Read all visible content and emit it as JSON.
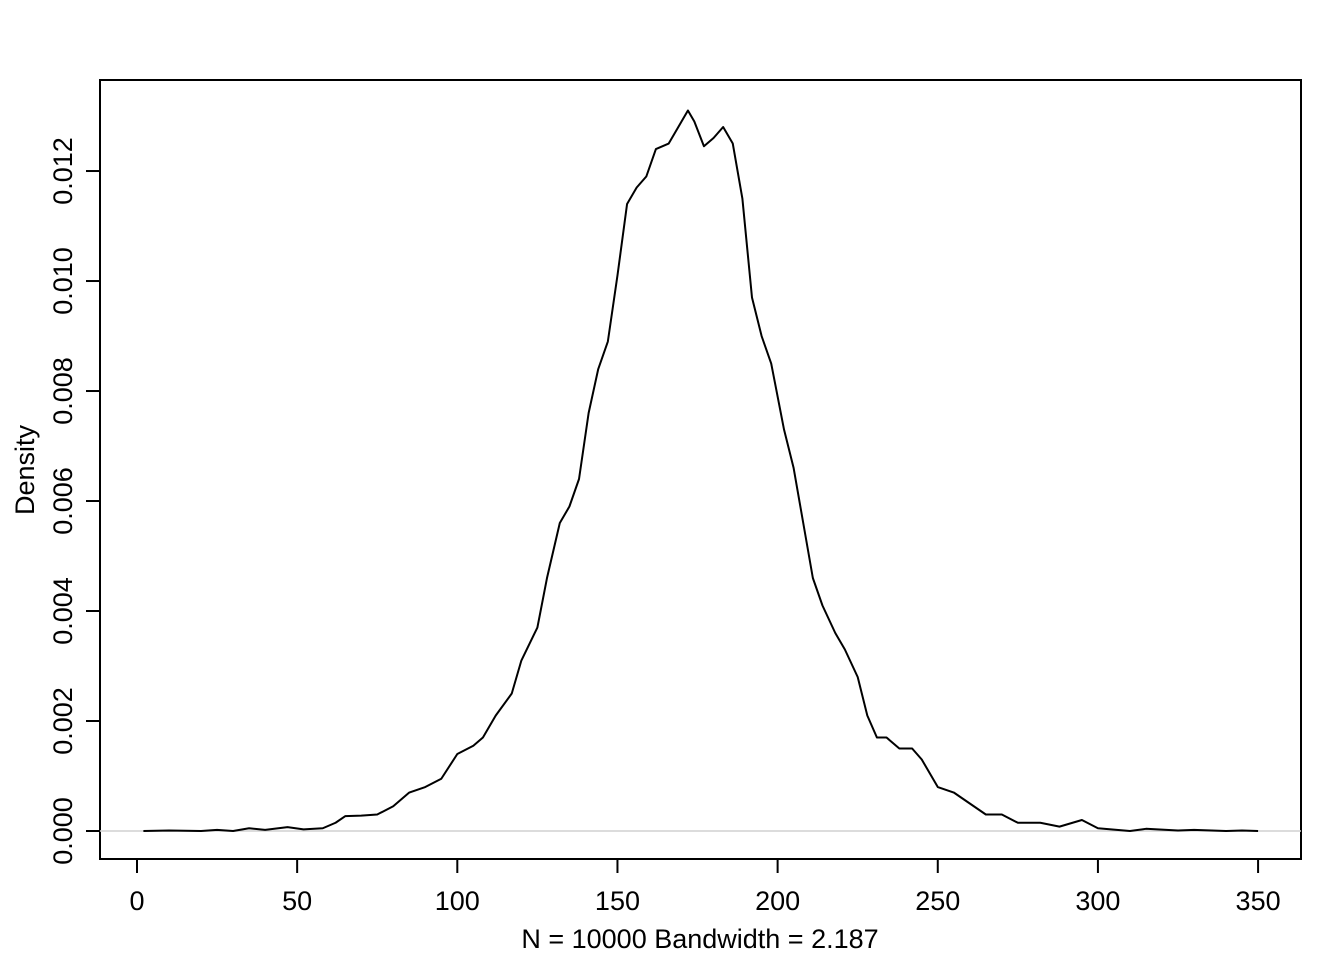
{
  "chart_data": {
    "type": "line",
    "x_label": "N = 10000   Bandwidth = 2.187",
    "y_label": "Density",
    "series": [
      {
        "color": "#000000",
        "x": [
          2,
          10,
          20,
          25,
          30,
          35,
          40,
          47,
          52,
          58,
          62,
          65,
          70,
          75,
          80,
          85,
          90,
          95,
          100,
          105,
          108,
          112,
          117,
          120,
          125,
          128,
          132,
          135,
          138,
          141,
          144,
          147,
          150,
          153,
          156,
          159,
          162,
          166,
          170,
          172,
          174,
          177,
          180,
          183,
          186,
          189,
          192,
          195,
          198,
          202,
          205,
          208,
          211,
          214,
          218,
          221,
          225,
          228,
          231,
          234,
          238,
          242,
          245,
          250,
          255,
          260,
          265,
          270,
          275,
          282,
          288,
          295,
          300,
          310,
          315,
          325,
          330,
          340,
          345,
          350
        ],
        "values": [
          0,
          1e-05,
          0,
          2e-05,
          0,
          5e-05,
          2e-05,
          7e-05,
          3e-05,
          5e-05,
          0.00015,
          0.00027,
          0.00028,
          0.0003,
          0.00045,
          0.0007,
          0.0008,
          0.00095,
          0.0014,
          0.00155,
          0.0017,
          0.0021,
          0.0025,
          0.0031,
          0.0037,
          0.0046,
          0.0056,
          0.0059,
          0.0064,
          0.0076,
          0.0084,
          0.0089,
          0.0101,
          0.0114,
          0.0117,
          0.0119,
          0.0124,
          0.0125,
          0.0129,
          0.0131,
          0.0129,
          0.01245,
          0.0126,
          0.0128,
          0.0125,
          0.0115,
          0.0097,
          0.009,
          0.0085,
          0.0073,
          0.0066,
          0.0056,
          0.0046,
          0.0041,
          0.0036,
          0.0033,
          0.0028,
          0.0021,
          0.0017,
          0.0017,
          0.0015,
          0.0015,
          0.0013,
          0.0008,
          0.0007,
          0.0005,
          0.0003,
          0.0003,
          0.00015,
          0.00015,
          8e-05,
          0.0002,
          5e-05,
          0,
          4e-05,
          1e-05,
          2e-05,
          0,
          1e-05,
          0
        ]
      }
    ],
    "xlim": [
      -11.55,
      363.4
    ],
    "ylim": [
      -0.000509,
      0.013655
    ],
    "xticks": [
      0,
      50,
      100,
      150,
      200,
      250,
      300,
      350
    ],
    "yticks": [
      {
        "value": 0,
        "label": "0.000"
      },
      0.002,
      0.004,
      0.006,
      0.008,
      {
        "value": 0.01,
        "label": "0.010"
      },
      0.012
    ],
    "zero_line": true,
    "zero_line_color": "#d0d0d0"
  }
}
